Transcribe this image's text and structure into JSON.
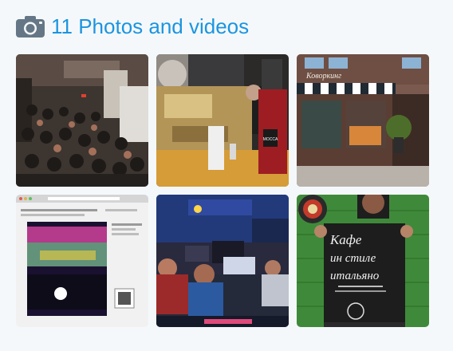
{
  "media": {
    "title": "11 Photos and videos",
    "icon": "camera-icon",
    "accent": "#1b95e0"
  },
  "photos": [
    {
      "name": "photo-audience-hall",
      "alt": ""
    },
    {
      "name": "photo-espresso-machine",
      "alt": "",
      "cup_text": "MOCCA"
    },
    {
      "name": "photo-cafe-storefront",
      "alt": "",
      "sign_text": "Коворкинг"
    },
    {
      "name": "photo-website-screenshot",
      "alt": ""
    },
    {
      "name": "photo-radio-studio",
      "alt": ""
    },
    {
      "name": "photo-poster",
      "alt": "",
      "poster_lines": [
        "Кафе",
        "ин стиле",
        "итальяно"
      ]
    }
  ]
}
